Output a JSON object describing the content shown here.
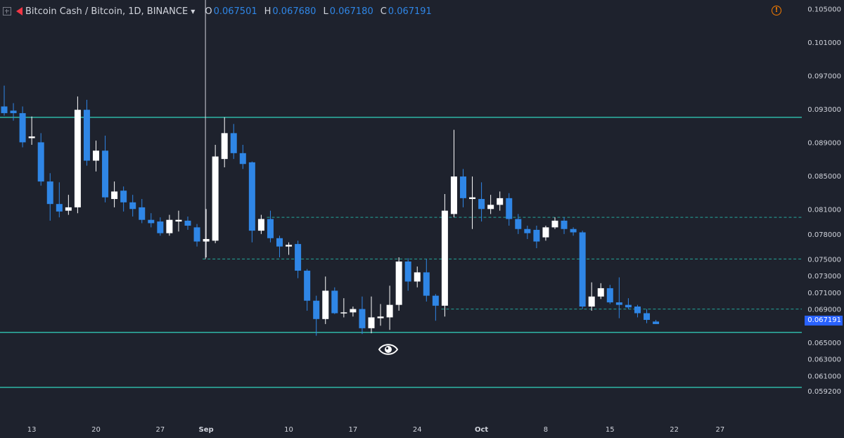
{
  "header": {
    "symbol": "Bitcoin Cash / Bitcoin, 1D, BINANCE",
    "ohlc": [
      {
        "k": "O",
        "v": "0.067501"
      },
      {
        "k": "H",
        "v": "0.067680"
      },
      {
        "k": "L",
        "v": "0.067180"
      },
      {
        "k": "C",
        "v": "0.067191"
      }
    ]
  },
  "icons": {
    "expand": "square-plus-icon",
    "flag": "red-flag-icon",
    "alert": "alert-circle-icon",
    "eye": "eye-icon"
  },
  "colors": {
    "background": "#1e222d",
    "up": "#ffffff",
    "down": "#2f86e6",
    "level_line": "#2fb7a6",
    "dashed_line": "#26a69a",
    "price_tag": "#2962ff"
  },
  "chart_data": {
    "type": "candlestick",
    "title": "",
    "price_axis": {
      "ticks": [
        "0.105000",
        "0.101000",
        "0.097000",
        "0.093000",
        "0.089000",
        "0.085000",
        "0.081000",
        "0.078000",
        "0.075000",
        "0.073000",
        "0.071000",
        "0.069000",
        "0.065000",
        "0.063000",
        "0.061000",
        "0.059200"
      ]
    },
    "last_price": "0.067191",
    "time_axis": {
      "labels": [
        "13",
        "20",
        "27",
        "Sep",
        "10",
        "17",
        "24",
        "Oct",
        "8",
        "15",
        "22",
        "27"
      ]
    },
    "candles": [
      {
        "d": "Aug 10",
        "o": 0.0933,
        "h": 0.0958,
        "l": 0.0922,
        "c": 0.0925
      },
      {
        "d": "Aug 11",
        "o": 0.0928,
        "h": 0.0937,
        "l": 0.0916,
        "c": 0.0925
      },
      {
        "d": "Aug 12",
        "o": 0.0925,
        "h": 0.0933,
        "l": 0.0884,
        "c": 0.089
      },
      {
        "d": "Aug 13",
        "o": 0.0895,
        "h": 0.0921,
        "l": 0.0887,
        "c": 0.0897
      },
      {
        "d": "Aug 14",
        "o": 0.089,
        "h": 0.0901,
        "l": 0.0838,
        "c": 0.0843
      },
      {
        "d": "Aug 15",
        "o": 0.0843,
        "h": 0.0853,
        "l": 0.0796,
        "c": 0.0816
      },
      {
        "d": "Aug 16",
        "o": 0.0816,
        "h": 0.0842,
        "l": 0.08,
        "c": 0.0807
      },
      {
        "d": "Aug 17",
        "o": 0.0808,
        "h": 0.0827,
        "l": 0.0803,
        "c": 0.0812
      },
      {
        "d": "Aug 18",
        "o": 0.0812,
        "h": 0.0945,
        "l": 0.0805,
        "c": 0.0929
      },
      {
        "d": "Aug 19",
        "o": 0.0929,
        "h": 0.0941,
        "l": 0.0862,
        "c": 0.0868
      },
      {
        "d": "Aug 20",
        "o": 0.0868,
        "h": 0.0892,
        "l": 0.0855,
        "c": 0.088
      },
      {
        "d": "Aug 21",
        "o": 0.088,
        "h": 0.0898,
        "l": 0.0818,
        "c": 0.0824
      },
      {
        "d": "Aug 22",
        "o": 0.0822,
        "h": 0.0843,
        "l": 0.0812,
        "c": 0.0831
      },
      {
        "d": "Aug 23",
        "o": 0.0832,
        "h": 0.0837,
        "l": 0.0807,
        "c": 0.0818
      },
      {
        "d": "Aug 24",
        "o": 0.0818,
        "h": 0.0827,
        "l": 0.0801,
        "c": 0.081
      },
      {
        "d": "Aug 25",
        "o": 0.0812,
        "h": 0.0822,
        "l": 0.0793,
        "c": 0.0797
      },
      {
        "d": "Aug 26",
        "o": 0.0797,
        "h": 0.0805,
        "l": 0.0788,
        "c": 0.0793
      },
      {
        "d": "Aug 27",
        "o": 0.0795,
        "h": 0.08,
        "l": 0.0778,
        "c": 0.0781
      },
      {
        "d": "Aug 28",
        "o": 0.0781,
        "h": 0.0803,
        "l": 0.0778,
        "c": 0.0797
      },
      {
        "d": "Aug 29",
        "o": 0.0795,
        "h": 0.0808,
        "l": 0.0783,
        "c": 0.0797
      },
      {
        "d": "Aug 30",
        "o": 0.0796,
        "h": 0.0801,
        "l": 0.0785,
        "c": 0.079
      },
      {
        "d": "Aug 31",
        "o": 0.0788,
        "h": 0.0792,
        "l": 0.0765,
        "c": 0.0771
      },
      {
        "d": "Sep 1",
        "o": 0.0771,
        "h": 0.081,
        "l": 0.0752,
        "c": 0.0774
      },
      {
        "d": "Sep 2",
        "o": 0.0772,
        "h": 0.0887,
        "l": 0.0769,
        "c": 0.0873
      },
      {
        "d": "Sep 3",
        "o": 0.087,
        "h": 0.092,
        "l": 0.086,
        "c": 0.0901
      },
      {
        "d": "Sep 4",
        "o": 0.0901,
        "h": 0.0912,
        "l": 0.087,
        "c": 0.0877
      },
      {
        "d": "Sep 5",
        "o": 0.0877,
        "h": 0.0887,
        "l": 0.0858,
        "c": 0.0864
      },
      {
        "d": "Sep 6",
        "o": 0.0866,
        "h": 0.0867,
        "l": 0.077,
        "c": 0.0784
      },
      {
        "d": "Sep 7",
        "o": 0.0784,
        "h": 0.0803,
        "l": 0.078,
        "c": 0.0798
      },
      {
        "d": "Sep 8",
        "o": 0.0798,
        "h": 0.0808,
        "l": 0.077,
        "c": 0.0775
      },
      {
        "d": "Sep 9",
        "o": 0.0775,
        "h": 0.0778,
        "l": 0.0752,
        "c": 0.0765
      },
      {
        "d": "Sep 10",
        "o": 0.0765,
        "h": 0.077,
        "l": 0.0755,
        "c": 0.0767
      },
      {
        "d": "Sep 11",
        "o": 0.0768,
        "h": 0.0772,
        "l": 0.0727,
        "c": 0.0736
      },
      {
        "d": "Sep 12",
        "o": 0.0736,
        "h": 0.0738,
        "l": 0.0688,
        "c": 0.07
      },
      {
        "d": "Sep 13",
        "o": 0.07,
        "h": 0.0706,
        "l": 0.0658,
        "c": 0.0678
      },
      {
        "d": "Sep 14",
        "o": 0.0678,
        "h": 0.0729,
        "l": 0.0672,
        "c": 0.0712
      },
      {
        "d": "Sep 15",
        "o": 0.0712,
        "h": 0.0716,
        "l": 0.0684,
        "c": 0.0685
      },
      {
        "d": "Sep 16",
        "o": 0.0685,
        "h": 0.0703,
        "l": 0.068,
        "c": 0.0686
      },
      {
        "d": "Sep 17",
        "o": 0.0686,
        "h": 0.0693,
        "l": 0.0681,
        "c": 0.069
      },
      {
        "d": "Sep 18",
        "o": 0.069,
        "h": 0.0705,
        "l": 0.066,
        "c": 0.0667
      },
      {
        "d": "Sep 19",
        "o": 0.0667,
        "h": 0.0705,
        "l": 0.0661,
        "c": 0.068
      },
      {
        "d": "Sep 20",
        "o": 0.0679,
        "h": 0.0696,
        "l": 0.067,
        "c": 0.0681
      },
      {
        "d": "Sep 21",
        "o": 0.068,
        "h": 0.0718,
        "l": 0.0665,
        "c": 0.0695
      },
      {
        "d": "Sep 22",
        "o": 0.0695,
        "h": 0.0752,
        "l": 0.0688,
        "c": 0.0747
      },
      {
        "d": "Sep 23",
        "o": 0.0747,
        "h": 0.0751,
        "l": 0.0712,
        "c": 0.0723
      },
      {
        "d": "Sep 24",
        "o": 0.0723,
        "h": 0.0741,
        "l": 0.0716,
        "c": 0.0734
      },
      {
        "d": "Sep 25",
        "o": 0.0734,
        "h": 0.075,
        "l": 0.0699,
        "c": 0.0706
      },
      {
        "d": "Sep 26",
        "o": 0.0706,
        "h": 0.0708,
        "l": 0.0676,
        "c": 0.0694
      },
      {
        "d": "Sep 27",
        "o": 0.0694,
        "h": 0.0828,
        "l": 0.0681,
        "c": 0.0808
      },
      {
        "d": "Sep 28",
        "o": 0.0804,
        "h": 0.0905,
        "l": 0.08,
        "c": 0.0849
      },
      {
        "d": "Sep 29",
        "o": 0.0849,
        "h": 0.0858,
        "l": 0.0812,
        "c": 0.0823
      },
      {
        "d": "Sep 30",
        "o": 0.0822,
        "h": 0.0849,
        "l": 0.0786,
        "c": 0.0824
      },
      {
        "d": "Oct 1",
        "o": 0.0822,
        "h": 0.0842,
        "l": 0.0795,
        "c": 0.081
      },
      {
        "d": "Oct 2",
        "o": 0.081,
        "h": 0.0827,
        "l": 0.0804,
        "c": 0.0815
      },
      {
        "d": "Oct 3",
        "o": 0.0815,
        "h": 0.0831,
        "l": 0.0808,
        "c": 0.0823
      },
      {
        "d": "Oct 4",
        "o": 0.0823,
        "h": 0.0829,
        "l": 0.079,
        "c": 0.0798
      },
      {
        "d": "Oct 5",
        "o": 0.0798,
        "h": 0.0804,
        "l": 0.078,
        "c": 0.0786
      },
      {
        "d": "Oct 6",
        "o": 0.0786,
        "h": 0.079,
        "l": 0.0774,
        "c": 0.0781
      },
      {
        "d": "Oct 7",
        "o": 0.0785,
        "h": 0.079,
        "l": 0.0763,
        "c": 0.0771
      },
      {
        "d": "Oct 8",
        "o": 0.0776,
        "h": 0.079,
        "l": 0.0772,
        "c": 0.0788
      },
      {
        "d": "Oct 9",
        "o": 0.0788,
        "h": 0.08,
        "l": 0.0786,
        "c": 0.0796
      },
      {
        "d": "Oct 10",
        "o": 0.0796,
        "h": 0.08,
        "l": 0.078,
        "c": 0.0786
      },
      {
        "d": "Oct 11",
        "o": 0.0786,
        "h": 0.0788,
        "l": 0.0778,
        "c": 0.0782
      },
      {
        "d": "Oct 12",
        "o": 0.0782,
        "h": 0.0784,
        "l": 0.069,
        "c": 0.0693
      },
      {
        "d": "Oct 13",
        "o": 0.0693,
        "h": 0.0722,
        "l": 0.0688,
        "c": 0.0705
      },
      {
        "d": "Oct 14",
        "o": 0.0705,
        "h": 0.0721,
        "l": 0.0702,
        "c": 0.0715
      },
      {
        "d": "Oct 15",
        "o": 0.0715,
        "h": 0.0719,
        "l": 0.0696,
        "c": 0.0698
      },
      {
        "d": "Oct 16",
        "o": 0.0698,
        "h": 0.0728,
        "l": 0.0679,
        "c": 0.0695
      },
      {
        "d": "Oct 17",
        "o": 0.0695,
        "h": 0.0703,
        "l": 0.069,
        "c": 0.0692
      },
      {
        "d": "Oct 18",
        "o": 0.0693,
        "h": 0.0695,
        "l": 0.068,
        "c": 0.0685
      },
      {
        "d": "Oct 19",
        "o": 0.0685,
        "h": 0.069,
        "l": 0.0673,
        "c": 0.0677
      },
      {
        "d": "Oct 20",
        "o": 0.0675,
        "h": 0.0677,
        "l": 0.0672,
        "c": 0.0672
      }
    ],
    "horizontal_lines": [
      {
        "price": 0.092,
        "style": "solid"
      },
      {
        "price": 0.08,
        "style": "dashed",
        "from": "Sep 8"
      },
      {
        "price": 0.075,
        "style": "dashed",
        "from": "Sep 1"
      },
      {
        "price": 0.069,
        "style": "dashed",
        "from": "Sep 27"
      },
      {
        "price": 0.0662,
        "style": "solid"
      },
      {
        "price": 0.0596,
        "style": "solid"
      }
    ],
    "crosshair_date": "Sep 1",
    "grid": false
  }
}
